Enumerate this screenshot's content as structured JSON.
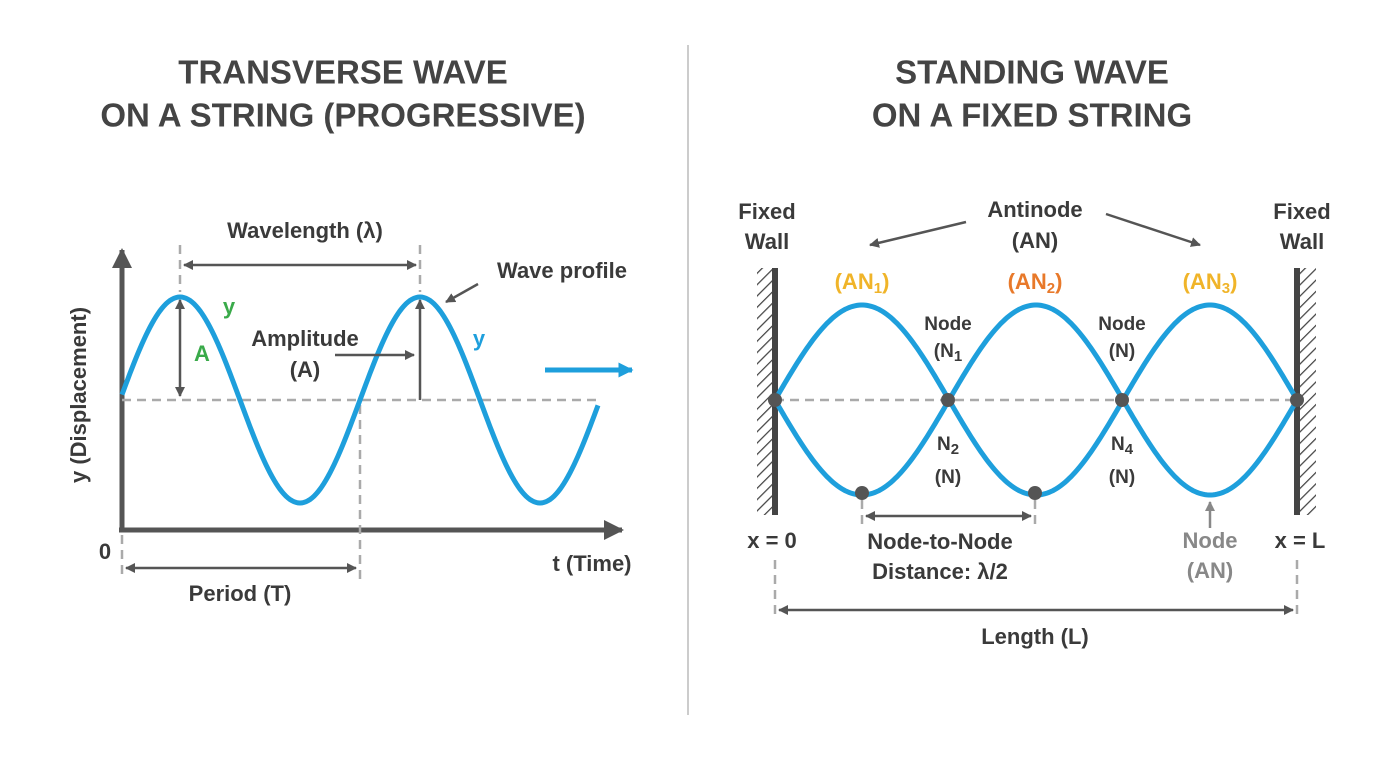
{
  "left_panel": {
    "title": [
      "TRANSVERSE WAVE",
      "ON A STRING (PROGRESSIVE)"
    ],
    "wavelength_label": "Wavelength (λ)",
    "wave_profile_label": "Wave profile",
    "green_y_label": "y",
    "amplitude_symbol": "A",
    "amplitude_label": [
      "Amplitude",
      "(A)"
    ],
    "blue_y_label": "y",
    "y_axis_label": "y (Displacement)",
    "origin_label": "0",
    "x_axis_label": "t (Time)",
    "period_label": "Period (T)"
  },
  "right_panel": {
    "title": [
      "STANDING WAVE",
      "ON A FIXED STRING"
    ],
    "left_wall_label": [
      "Fixed",
      "Wall"
    ],
    "right_wall_label": [
      "Fixed",
      "Wall"
    ],
    "antinode_label": [
      "Antinode",
      "(AN)"
    ],
    "antinode_markers": [
      [
        "(AN",
        "1",
        ")"
      ],
      [
        "(AN",
        "2",
        ")"
      ],
      [
        "(AN",
        "3",
        ")"
      ]
    ],
    "node_label_1": {
      "name": "Node",
      "code": [
        "(N",
        "1"
      ]
    },
    "node_label_3": {
      "name": "Node",
      "code": "(N)"
    },
    "node_label_2": {
      "code": [
        "N",
        "2"
      ],
      "type": "(N)"
    },
    "node_label_4": {
      "code": [
        "N",
        "4"
      ],
      "type": "(N)"
    },
    "left_end_label": "x = 0",
    "right_end_label": "x = L",
    "half_wavelength_label": [
      "Node-to-Node",
      "Distance: λ/2"
    ],
    "bottom_node_label": [
      "Node",
      "(AN)"
    ],
    "length_label": "Length (L)"
  }
}
